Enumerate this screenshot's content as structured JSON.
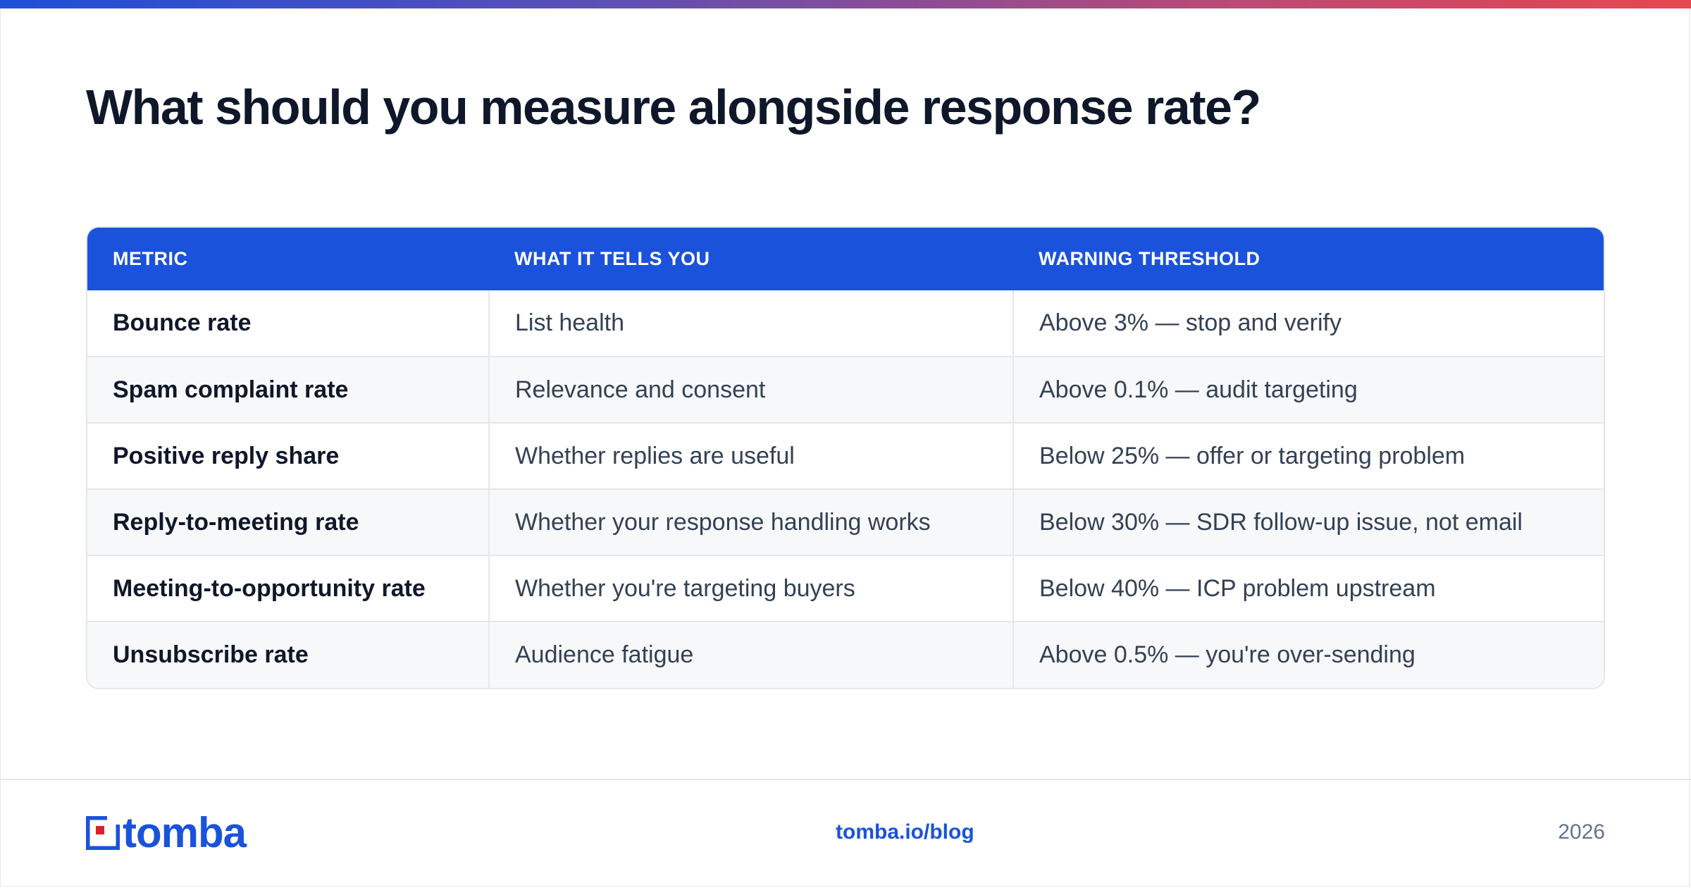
{
  "page": {
    "title": "What should you measure alongside response rate?"
  },
  "table": {
    "headers": [
      "METRIC",
      "WHAT IT TELLS YOU",
      "WARNING THRESHOLD"
    ],
    "rows": [
      [
        "Bounce rate",
        "List health",
        "Above 3% — stop and verify"
      ],
      [
        "Spam complaint rate",
        "Relevance and consent",
        "Above 0.1% — audit targeting"
      ],
      [
        "Positive reply share",
        "Whether replies are useful",
        "Below 25% — offer or targeting problem"
      ],
      [
        "Reply-to-meeting rate",
        "Whether your response handling works",
        "Below 30% — SDR follow-up issue, not email"
      ],
      [
        "Meeting-to-opportunity rate",
        "Whether you're targeting buyers",
        "Below 40% — ICP problem upstream"
      ],
      [
        "Unsubscribe rate",
        "Audience fatigue",
        "Above 0.5% — you're over-sending"
      ]
    ]
  },
  "footer": {
    "logo_text": "tomba",
    "logo_icon": "tomba-logo-icon",
    "link": "tomba.io/blog",
    "year": "2026"
  },
  "colors": {
    "accent": "#1b52dc",
    "logo_red": "#e11d2a",
    "title": "#0f172a",
    "gradient_start": "#1d4fd8",
    "gradient_end": "#e8474f"
  }
}
